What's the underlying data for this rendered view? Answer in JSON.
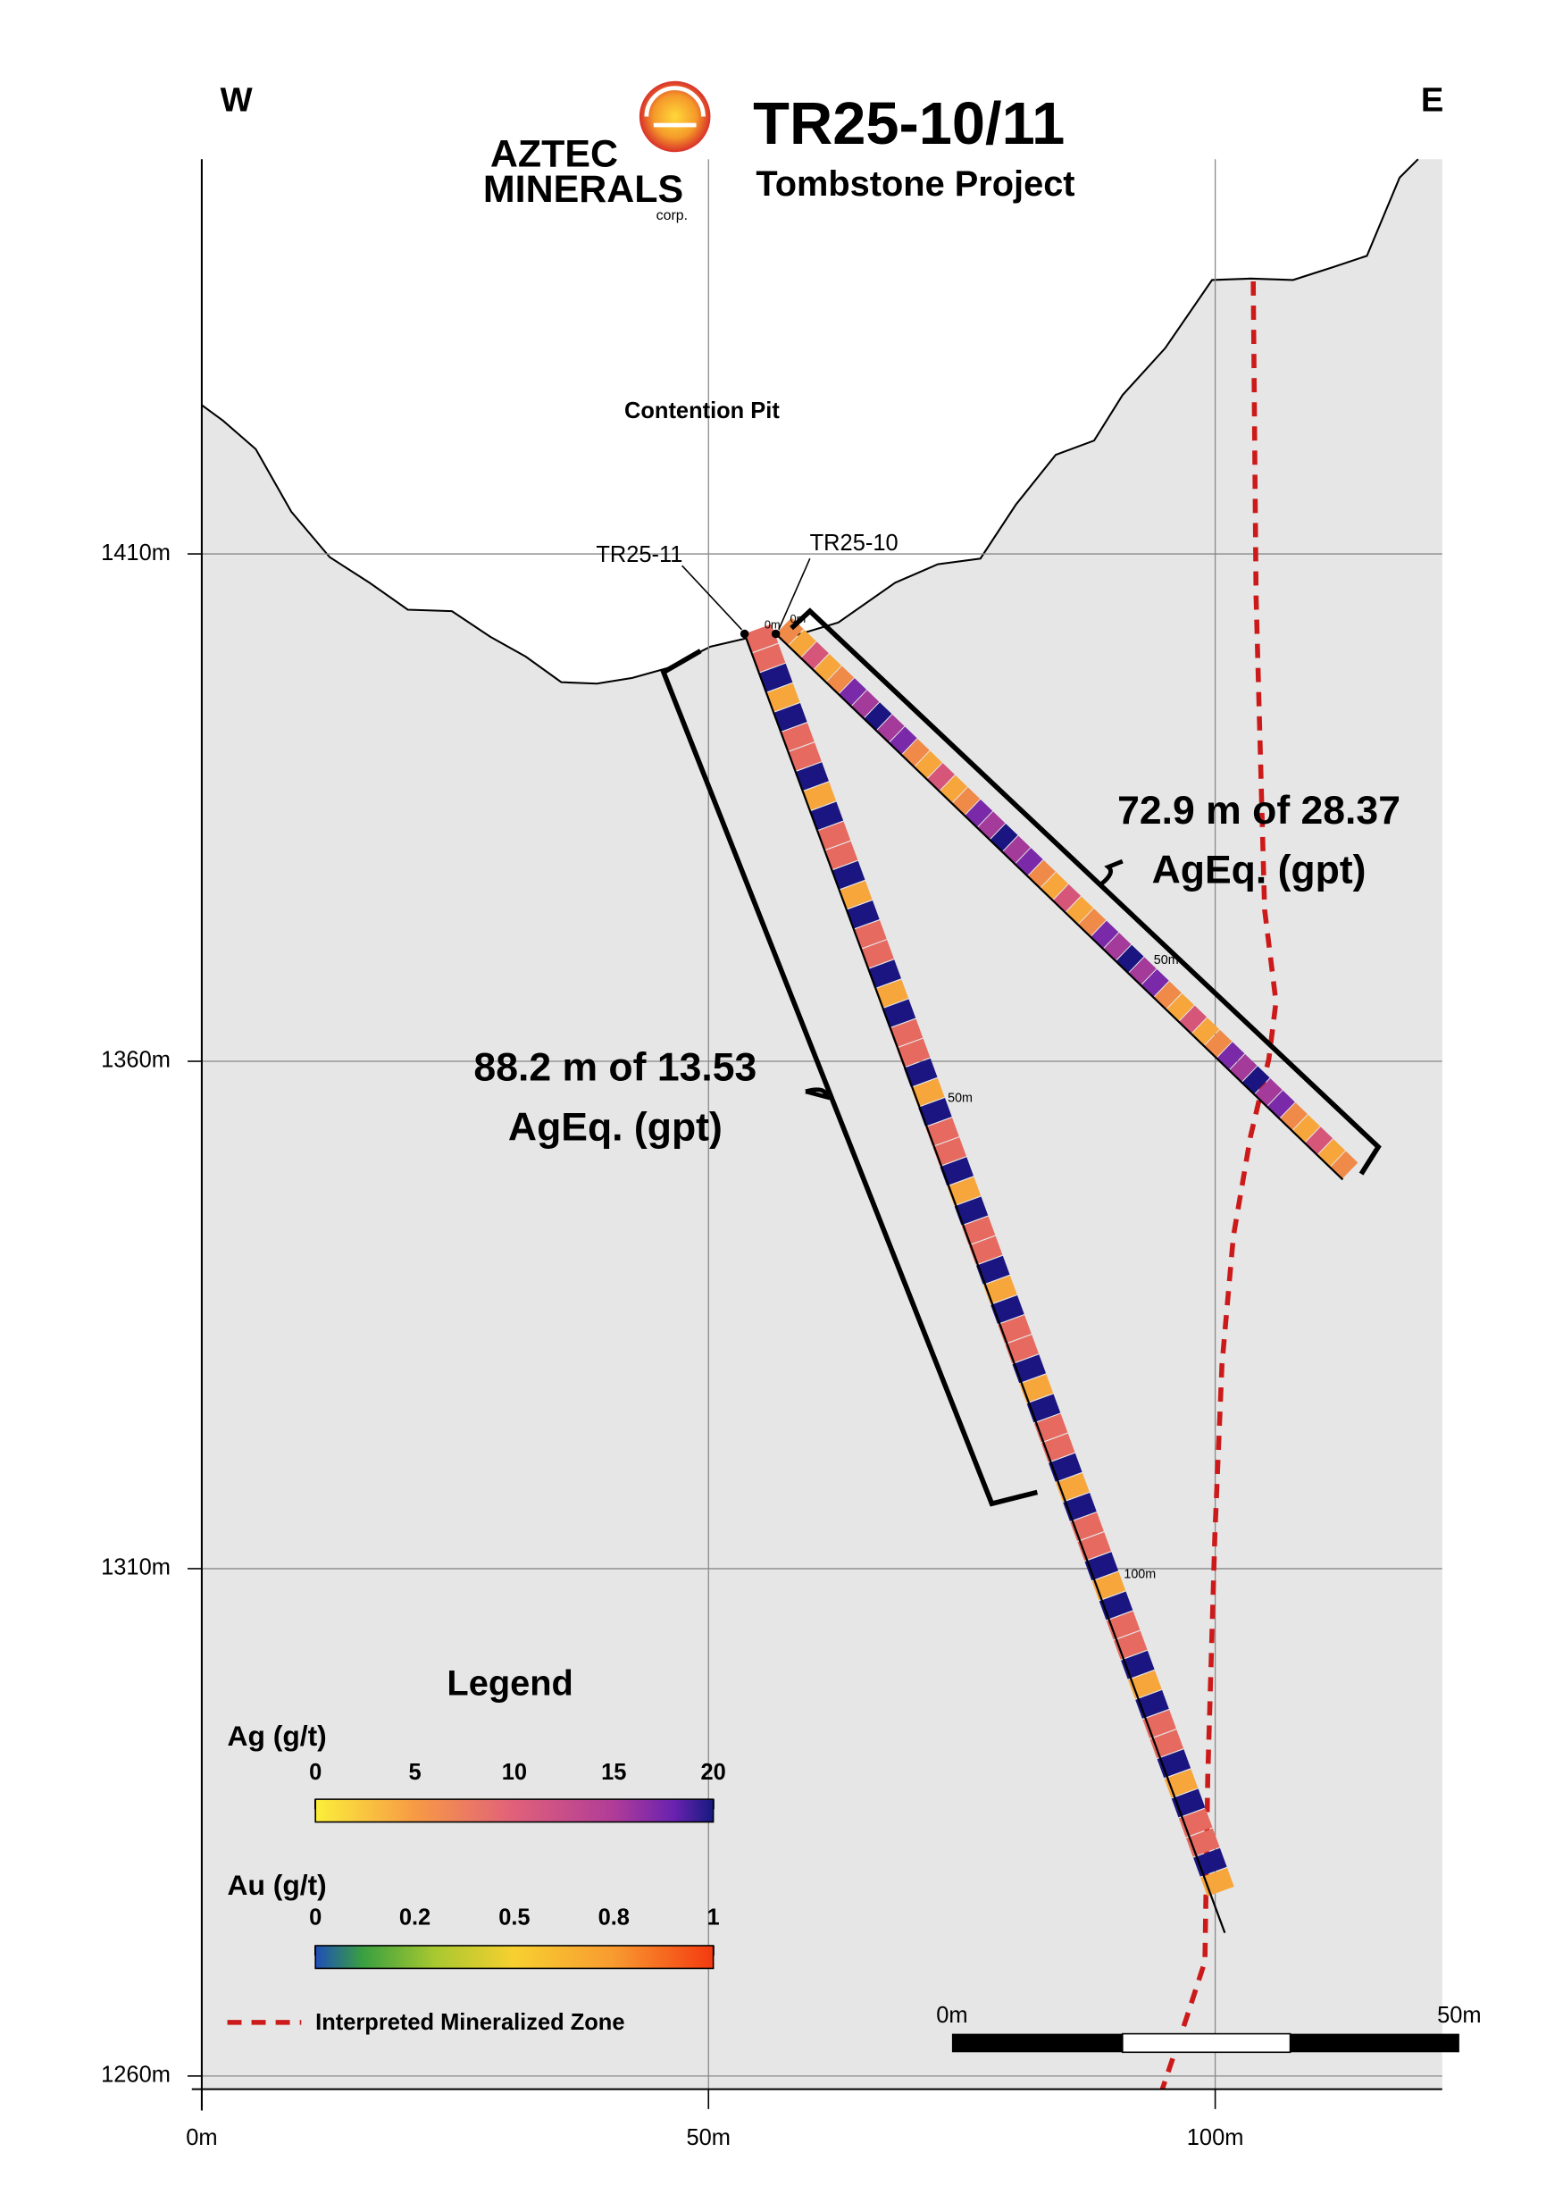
{
  "header": {
    "title": "TR25-10/11",
    "subtitle": "Tombstone Project",
    "logo_line1": "AZTEC",
    "logo_line2": "MINERALS",
    "logo_line3": "corp."
  },
  "orientation": {
    "west": "W",
    "east": "E"
  },
  "section": {
    "xlim": [
      0,
      122.4
    ],
    "ylim": [
      1258.7,
      1448.9
    ],
    "xticks": [
      {
        "value": 0,
        "label": "0m"
      },
      {
        "value": 50,
        "label": "50m"
      },
      {
        "value": 100,
        "label": "100m"
      }
    ],
    "yticks": [
      {
        "value": 1410,
        "label": "1410m"
      },
      {
        "value": 1360,
        "label": "1360m"
      },
      {
        "value": 1310,
        "label": "1310m"
      },
      {
        "value": 1260,
        "label": "1260m"
      }
    ]
  },
  "annotations": {
    "pit": "Contention Pit",
    "hole_11": "TR25-11",
    "hole_10": "TR25-10",
    "collar_11": "0m",
    "collar_10": "0m",
    "depth_10_50": "50m",
    "depth_11_50": "50m",
    "depth_11_100": "100m"
  },
  "intercepts": [
    {
      "line1": "72.9 m of 28.37",
      "line2": "AgEq. (gpt)"
    },
    {
      "line1": "88.2 m of 13.53",
      "line2": "AgEq. (gpt)"
    }
  ],
  "legend": {
    "title": "Legend",
    "ag": {
      "label": "Ag (g/t)",
      "ticks": [
        0,
        5,
        10,
        15,
        20
      ]
    },
    "au": {
      "label": "Au (g/t)",
      "ticks": [
        0,
        0.2,
        0.5,
        0.8,
        1
      ]
    },
    "zone": "Interpreted Mineralized Zone"
  },
  "scale_bar": {
    "start": "0m",
    "end": "50m"
  }
}
